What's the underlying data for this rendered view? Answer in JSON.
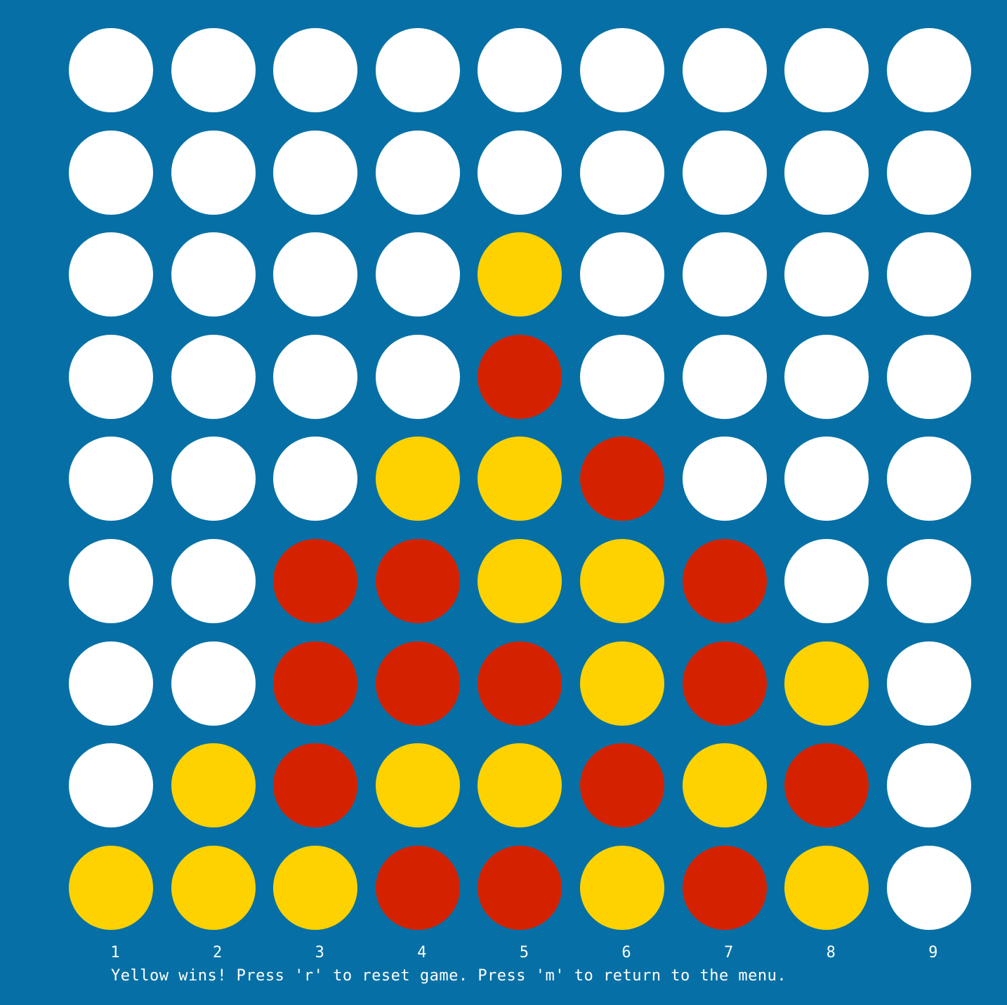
{
  "colors": {
    "board": "#0670a6",
    "empty": "#ffffff",
    "red": "#d42200",
    "yellow": "#fdd200",
    "text": "#ffffff"
  },
  "board": {
    "columns": 9,
    "rows": 9,
    "column_labels": [
      "1",
      "2",
      "3",
      "4",
      "5",
      "6",
      "7",
      "8",
      "9"
    ],
    "cells": [
      [
        "E",
        "E",
        "E",
        "E",
        "E",
        "E",
        "E",
        "E",
        "E"
      ],
      [
        "E",
        "E",
        "E",
        "E",
        "E",
        "E",
        "E",
        "E",
        "E"
      ],
      [
        "E",
        "E",
        "E",
        "E",
        "Y",
        "E",
        "E",
        "E",
        "E"
      ],
      [
        "E",
        "E",
        "E",
        "E",
        "R",
        "E",
        "E",
        "E",
        "E"
      ],
      [
        "E",
        "E",
        "E",
        "Y",
        "Y",
        "R",
        "E",
        "E",
        "E"
      ],
      [
        "E",
        "E",
        "R",
        "R",
        "Y",
        "Y",
        "R",
        "E",
        "E"
      ],
      [
        "E",
        "E",
        "R",
        "R",
        "R",
        "Y",
        "R",
        "Y",
        "E"
      ],
      [
        "E",
        "Y",
        "R",
        "Y",
        "Y",
        "R",
        "Y",
        "R",
        "E"
      ],
      [
        "Y",
        "Y",
        "Y",
        "R",
        "R",
        "Y",
        "R",
        "Y",
        "E"
      ]
    ]
  },
  "status": {
    "message": "Yellow wins! Press 'r' to reset game. Press 'm' to return to the menu."
  }
}
